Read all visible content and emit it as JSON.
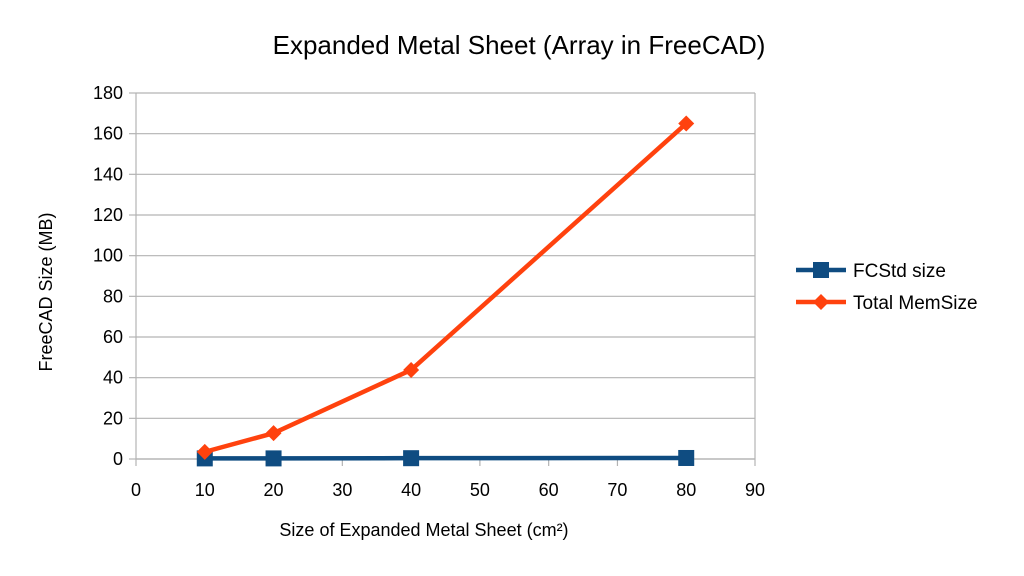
{
  "chart_data": {
    "type": "line",
    "title": "Expanded Metal Sheet (Array in FreeCAD)",
    "xlabel": "Size of Expanded Metal Sheet (cm²)",
    "ylabel": "FreeCAD Size (MB)",
    "xlim": [
      0,
      90
    ],
    "ylim": [
      0,
      180
    ],
    "x_ticks": [
      0,
      10,
      20,
      30,
      40,
      50,
      60,
      70,
      80,
      90
    ],
    "y_ticks": [
      0,
      20,
      40,
      60,
      80,
      100,
      120,
      140,
      160,
      180
    ],
    "grid": "horizontal",
    "legend_position": "right",
    "series": [
      {
        "name": "FCStd size",
        "color": "#0f4c81",
        "marker": "square",
        "points": [
          {
            "x": 10,
            "y": 0.3
          },
          {
            "x": 20,
            "y": 0.3
          },
          {
            "x": 40,
            "y": 0.4
          },
          {
            "x": 80,
            "y": 0.5
          }
        ]
      },
      {
        "name": "Total MemSize",
        "color": "#ff420e",
        "marker": "diamond",
        "points": [
          {
            "x": 10,
            "y": 3.5
          },
          {
            "x": 20,
            "y": 12.7
          },
          {
            "x": 40,
            "y": 43.8
          },
          {
            "x": 80,
            "y": 165
          }
        ]
      }
    ]
  }
}
